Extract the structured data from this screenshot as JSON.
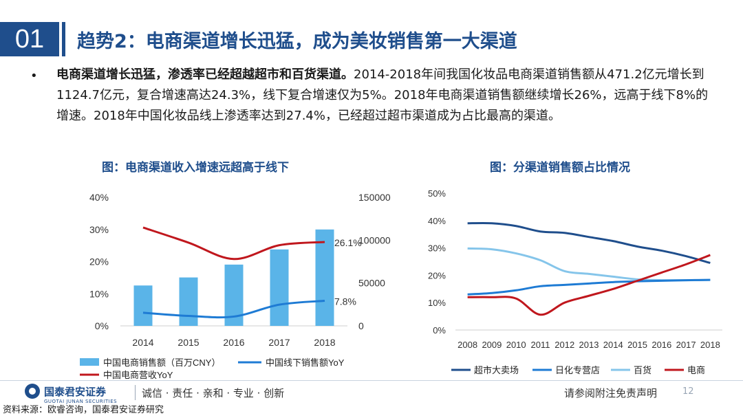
{
  "header": {
    "number": "01",
    "title": "趋势2：电商渠道增长迅猛，成为美妆销售第一大渠道"
  },
  "body": {
    "bullet": "•",
    "bold_lead": "电商渠道增长迅猛，渗透率已经超越超市和百货渠道。",
    "text": "2014-2018年间我国化妆品电商渠道销售额从471.2亿元增长到1124.7亿元，复合增速高达24.3%，线下复合增速仅为5%。2018年电商渠道销售额继续增长26%，远高于线下8%的增速。2018年中国化妆品线上渗透率达到27.4%，已经超过超市渠道成为占比最高的渠道。"
  },
  "colors": {
    "brand": "#1f4e8c",
    "bar": "#5ab4e8",
    "offline_line": "#1e7bd4",
    "ecom_line": "#c0171d",
    "supermarket": "#1f4e8c",
    "specialty": "#1e7bd4",
    "department": "#85c5ea",
    "ecommerce": "#c0171d"
  },
  "chart_data": [
    {
      "type": "bar",
      "title": "图：电商渠道收入增速远超高于线下",
      "categories": [
        "2014",
        "2015",
        "2016",
        "2017",
        "2018"
      ],
      "left_axis": {
        "ticks": [
          "0%",
          "10%",
          "20%",
          "30%",
          "40%"
        ],
        "ylim": [
          0,
          0.4
        ]
      },
      "right_axis": {
        "ticks": [
          "0",
          "50000",
          "100000",
          "150000"
        ],
        "ylim": [
          0,
          150000
        ]
      },
      "series": [
        {
          "name": "中国电商销售额（百万CNY）",
          "type": "bar",
          "axis": "right",
          "values": [
            47120,
            56500,
            71500,
            89200,
            112470
          ]
        },
        {
          "name": "中国线下销售额YoY",
          "type": "line",
          "axis": "left",
          "values": [
            0.041,
            0.031,
            0.029,
            0.066,
            0.078
          ]
        },
        {
          "name": "中国电商营收YoY",
          "type": "line",
          "axis": "left",
          "values": [
            0.306,
            0.259,
            0.208,
            0.251,
            0.261
          ]
        }
      ],
      "annotations": {
        "ecom_end": "26.1%",
        "offline_end": "7.8%"
      }
    },
    {
      "type": "line",
      "title": "图：分渠道销售额占比情况",
      "x": [
        "2008",
        "2009",
        "2010",
        "2011",
        "2012",
        "2013",
        "2014",
        "2015",
        "2016",
        "2017",
        "2018"
      ],
      "y_ticks": [
        "0%",
        "10%",
        "20%",
        "30%",
        "40%",
        "50%"
      ],
      "ylim": [
        0,
        0.5
      ],
      "series": [
        {
          "name": "超市大卖场",
          "values": [
            0.39,
            0.39,
            0.38,
            0.36,
            0.355,
            0.34,
            0.325,
            0.305,
            0.29,
            0.27,
            0.245
          ]
        },
        {
          "name": "日化专营店",
          "values": [
            0.13,
            0.135,
            0.145,
            0.16,
            0.165,
            0.17,
            0.175,
            0.178,
            0.18,
            0.182,
            0.183
          ]
        },
        {
          "name": "百货",
          "values": [
            0.298,
            0.295,
            0.28,
            0.255,
            0.215,
            0.205,
            0.195,
            0.185,
            0.182,
            0.182,
            0.183
          ]
        },
        {
          "name": "电商",
          "values": [
            0.12,
            0.12,
            0.115,
            0.056,
            0.1,
            0.125,
            0.15,
            0.18,
            0.21,
            0.24,
            0.274
          ]
        }
      ]
    }
  ],
  "footer": {
    "logo_cn": "国泰君安证券",
    "logo_en": "GUOTAI JUNAN SECURITIES",
    "slogan": "诚信 · 责任 · 亲和 · 专业 · 创新",
    "disclaimer": "请参阅附注免责声明",
    "page": "12",
    "source": "资料来源：欧睿咨询，国泰君安证券研究"
  }
}
